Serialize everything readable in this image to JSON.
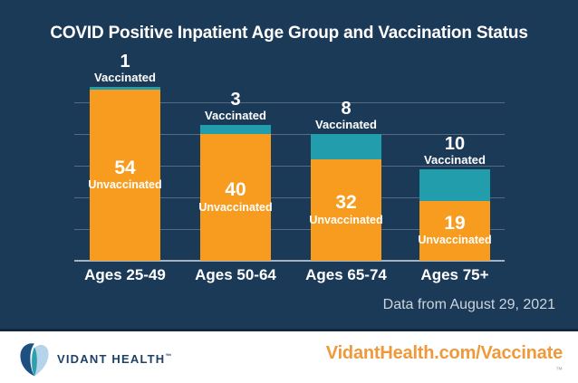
{
  "title": "COVID Positive Inpatient Age Group and Vaccination Status",
  "note": {
    "text": "Data from August 29, 2021"
  },
  "chart_data": {
    "type": "bar",
    "stacked": true,
    "title": "COVID Positive Inpatient Age Group and Vaccination Status",
    "categories": [
      "Ages 25-49",
      "Ages 50-64",
      "Ages 65-74",
      "Ages 75+"
    ],
    "series": [
      {
        "name": "Unvaccinated",
        "color": "#F79C1F",
        "values": [
          54,
          40,
          32,
          19
        ]
      },
      {
        "name": "Vaccinated",
        "color": "#229DAB",
        "values": [
          1,
          3,
          8,
          10
        ]
      }
    ],
    "totals": [
      55,
      43,
      40,
      29
    ],
    "ylim": [
      0,
      55
    ],
    "gridline_values": [
      10,
      20,
      30,
      40,
      50
    ],
    "grid": true,
    "legend_position": "labels-on-bars",
    "background_color": "#1B3A58"
  },
  "footer": {
    "brand": "VIDANT HEALTH",
    "brand_tm": "™",
    "url": "VidantHealth.com/Vaccinate",
    "url_tm": "™",
    "logo_colors": {
      "left_petal": "#1D4F80",
      "right_petal": "#B5D4E9",
      "overlap": "#2E9FAC"
    }
  }
}
